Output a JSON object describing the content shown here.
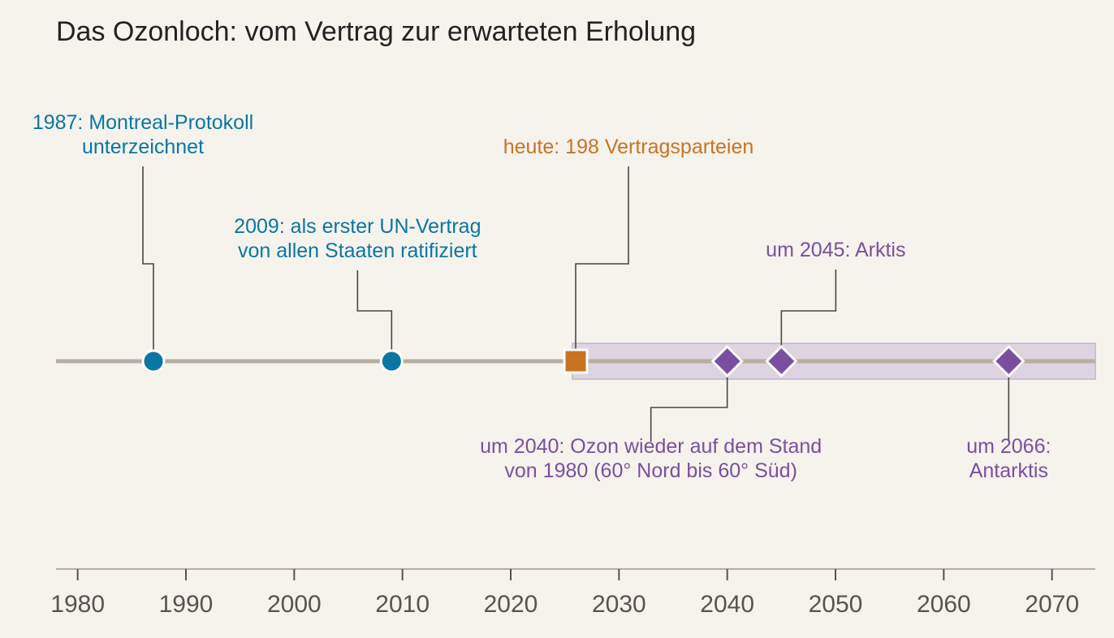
{
  "chart_data": {
    "type": "timeline",
    "title": "Das Ozonloch: vom Vertrag zur erwarteten Erholung",
    "xlim": [
      1978,
      2074
    ],
    "x_ticks": [
      1980,
      1990,
      2000,
      2010,
      2020,
      2030,
      2040,
      2050,
      2060,
      2070
    ],
    "x_tick_labels": [
      "1980",
      "1990",
      "2000",
      "2010",
      "2020",
      "2030",
      "2040",
      "2050",
      "2060",
      "2070"
    ],
    "projection_band": {
      "from": 2026,
      "to": 2074
    },
    "events": [
      {
        "year": 1987,
        "kind": "milestone",
        "marker": "circle",
        "side": "above",
        "lines": [
          "1987: Montreal-Protokoll",
          "unterzeichnet"
        ]
      },
      {
        "year": 2009,
        "kind": "milestone",
        "marker": "circle",
        "side": "above",
        "lines": [
          "2009: als erster UN-Vertrag",
          "von allen Staaten ratifiziert"
        ]
      },
      {
        "year": 2026,
        "kind": "today",
        "marker": "square",
        "side": "above",
        "lines": [
          "heute: 198 Vertragsparteien"
        ]
      },
      {
        "year": 2040,
        "kind": "projection",
        "marker": "diamond",
        "side": "below",
        "lines": [
          "um 2040: Ozon wieder auf dem Stand",
          "von 1980 (60° Nord bis 60° Süd)"
        ]
      },
      {
        "year": 2045,
        "kind": "projection",
        "marker": "diamond",
        "side": "above",
        "lines": [
          "um 2045: Arktis"
        ]
      },
      {
        "year": 2066,
        "kind": "projection",
        "marker": "diamond",
        "side": "below",
        "lines": [
          "um 2066:",
          "Antarktis"
        ]
      }
    ]
  },
  "colors": {
    "background": "#f6f3ed",
    "milestone": "#0a76a3",
    "today": "#c87322",
    "projection": "#7a4fa0",
    "projection_band_fill": "#ded3e0",
    "projection_band_stroke": "#cdbfd6",
    "timeline_line": "#b7aea2",
    "leader_line": "#4a4540",
    "axis_line": "#b7aea2",
    "axis_text": "#58534d",
    "title_text": "#222222"
  }
}
